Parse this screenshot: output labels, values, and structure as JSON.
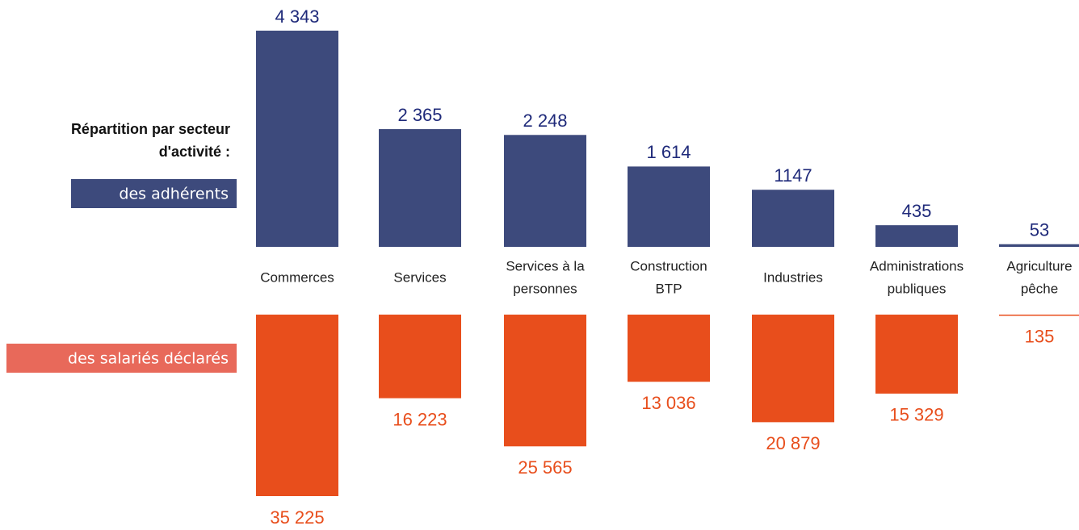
{
  "chart_data": {
    "type": "bar",
    "title": [
      "Répartition par secteur",
      "d'activité :"
    ],
    "categories": [
      [
        "Commerces"
      ],
      [
        "Services"
      ],
      [
        "Services à la",
        "personnes"
      ],
      [
        "Construction",
        "BTP"
      ],
      [
        "Industries"
      ],
      [
        "Administrations",
        "publiques"
      ],
      [
        "Agriculture",
        "pêche"
      ]
    ],
    "series": [
      {
        "name": "des adhérents",
        "color": "#3d4a7c",
        "label_color": "#1f2a7a",
        "legend_color": "#3d4a7c",
        "values": [
          4343,
          2365,
          2248,
          1614,
          1147,
          435,
          53
        ],
        "value_labels": [
          "4 343",
          "2 365",
          "2 248",
          "1 614",
          "1147",
          "435",
          "53"
        ]
      },
      {
        "name": "des salariés déclarés",
        "color": "#e84e1c",
        "label_color": "#e84e1c",
        "legend_color": "#e8695a",
        "values": [
          35225,
          16223,
          25565,
          13036,
          20879,
          15329,
          135
        ],
        "value_labels": [
          "35 225",
          "16 223",
          "25 565",
          "13 036",
          "20 879",
          "15 329",
          "135"
        ]
      }
    ]
  }
}
